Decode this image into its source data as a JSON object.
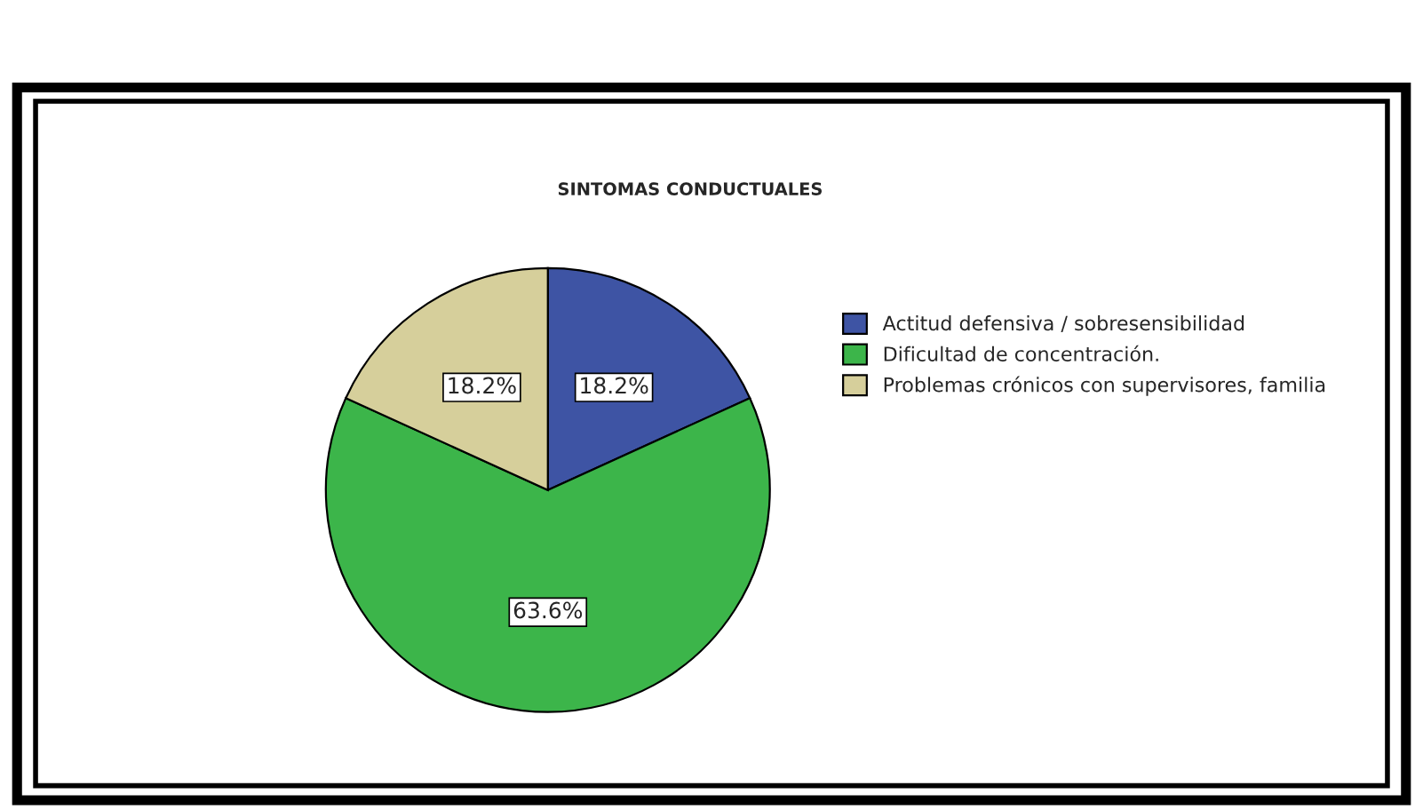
{
  "chart_data": {
    "type": "pie",
    "title": "SINTOMAS CONDUCTUALES",
    "categories": [
      "Actitud defensiva / sobresensibilidad",
      "Dificultad de concentración.",
      "Problemas crónicos con supervisores, familia"
    ],
    "values": [
      18.2,
      63.6,
      18.2
    ],
    "colors": [
      "#3e54a4",
      "#3cb54a",
      "#d6cf9b"
    ],
    "value_labels": [
      "18.2%",
      "63.6%",
      "18.2%"
    ],
    "legend": "right"
  }
}
